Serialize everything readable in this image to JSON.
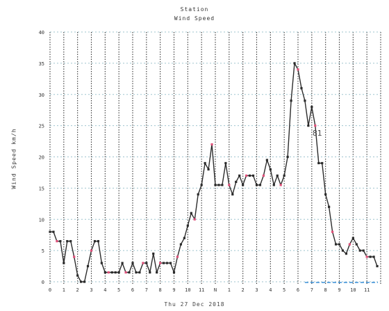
{
  "chart_data": {
    "type": "line",
    "title": "Station",
    "subtitle": "Wind Speed",
    "xlabel": "Thu 27 Dec 2018",
    "ylabel": "Wind Speed km/h",
    "ylim": [
      0,
      40
    ],
    "yticks": [
      0,
      5,
      10,
      15,
      20,
      25,
      30,
      35,
      40
    ],
    "xlim": [
      0,
      24
    ],
    "xtick_labels": [
      "0",
      "1",
      "2",
      "3",
      "4",
      "5",
      "6",
      "7",
      "8",
      "9",
      "10",
      "11",
      "N",
      "1",
      "2",
      "3",
      "4",
      "5",
      "6",
      "7",
      "8",
      "9",
      "10",
      "11"
    ],
    "grid": true,
    "annotation": "81",
    "colors": {
      "series": "#2b2b2b",
      "accent": "#e0507a",
      "grid_h": "#9ec3ce",
      "grid_v": "#333333"
    },
    "series": [
      {
        "x": [
          0.0,
          0.25,
          0.5,
          0.75,
          1.0,
          1.25,
          1.5,
          1.75,
          2.0,
          2.25,
          2.5,
          2.75,
          3.0,
          3.25,
          3.5,
          3.75,
          4.0,
          4.25,
          4.5,
          4.75,
          5.0,
          5.25,
          5.5,
          5.75,
          6.0,
          6.25,
          6.5,
          6.75,
          7.0,
          7.25,
          7.5,
          7.75,
          8.0,
          8.25,
          8.5,
          8.75,
          9.0,
          9.25,
          9.5,
          9.75,
          10.0,
          10.25,
          10.5,
          10.75,
          11.0,
          11.25,
          11.5,
          11.75,
          12.0,
          12.25,
          12.5,
          12.75,
          13.0,
          13.25,
          13.5,
          13.75,
          14.0,
          14.25,
          14.5,
          14.75,
          15.0,
          15.25,
          15.5,
          15.75,
          16.0,
          16.25,
          16.5,
          16.75,
          17.0,
          17.25,
          17.5,
          17.75,
          18.0,
          18.25,
          18.5,
          18.75,
          19.0,
          19.25,
          19.5,
          19.75,
          20.0,
          20.25,
          20.5,
          20.75,
          21.0,
          21.25,
          21.5,
          21.75,
          22.0,
          22.25,
          22.5,
          22.75,
          23.0,
          23.25,
          23.5,
          23.75
        ],
        "y": [
          8,
          8,
          6.5,
          6.5,
          3,
          6.5,
          6.5,
          4,
          1,
          0,
          0,
          2.5,
          5,
          6.5,
          6.5,
          3,
          1.5,
          1.5,
          1.5,
          1.5,
          1.5,
          3,
          1.5,
          1.5,
          3,
          1.5,
          1.5,
          3,
          3,
          1.5,
          4.5,
          1.5,
          3,
          3,
          3,
          3,
          1.5,
          4,
          6,
          7,
          9,
          11,
          10,
          14,
          15.5,
          19,
          18,
          22,
          15.5,
          15.5,
          15.5,
          19,
          15.5,
          14,
          16,
          17,
          15.5,
          17,
          17,
          17,
          15.5,
          15.5,
          17,
          19.5,
          18,
          15.5,
          17,
          15.5,
          17,
          20,
          29,
          35,
          34,
          31,
          29,
          25,
          28,
          25,
          19,
          19,
          14,
          12,
          8,
          6,
          6,
          5,
          4.5,
          6,
          7,
          6,
          5,
          5,
          4,
          4,
          4,
          2.5
        ]
      }
    ]
  }
}
